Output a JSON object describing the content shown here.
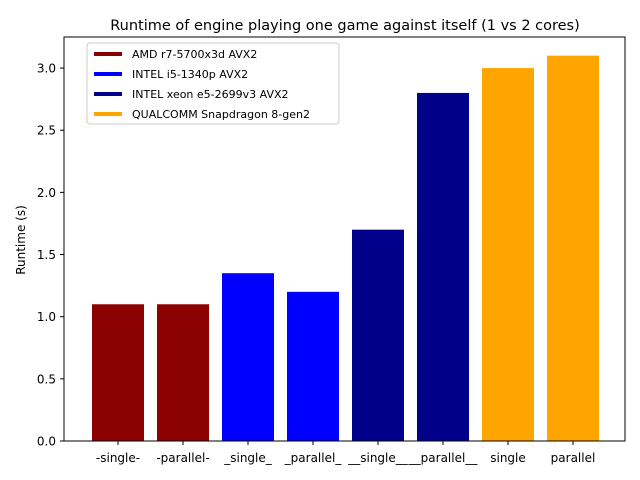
{
  "chart_data": {
    "type": "bar",
    "title": "Runtime of engine playing one game against itself (1 vs 2 cores)",
    "xlabel": "",
    "ylabel": "Runtime (s)",
    "ylim": [
      0,
      3.25
    ],
    "yticks": [
      0.0,
      0.5,
      1.0,
      1.5,
      2.0,
      2.5,
      3.0
    ],
    "ytick_labels": [
      "0.0",
      "0.5",
      "1.0",
      "1.5",
      "2.0",
      "2.5",
      "3.0"
    ],
    "grid": false,
    "legend_position": "top-left",
    "categories": [
      "-single-",
      "-parallel-",
      "_single_",
      "_parallel_",
      "__single__",
      "__parallel__",
      "single",
      "parallel"
    ],
    "values": [
      1.1,
      1.1,
      1.35,
      1.2,
      1.7,
      2.8,
      3.0,
      3.1
    ],
    "bar_colors": [
      "#8b0000",
      "#8b0000",
      "#0000ff",
      "#0000ff",
      "#00008b",
      "#00008b",
      "#ffa500",
      "#ffa500"
    ],
    "legend": [
      {
        "label": "AMD r7-5700x3d AVX2",
        "color": "#8b0000"
      },
      {
        "label": "INTEL i5-1340p AVX2",
        "color": "#0000ff"
      },
      {
        "label": "INTEL xeon e5-2699v3 AVX2",
        "color": "#00008b"
      },
      {
        "label": "QUALCOMM Snapdragon 8-gen2",
        "color": "#ffa500"
      }
    ]
  }
}
